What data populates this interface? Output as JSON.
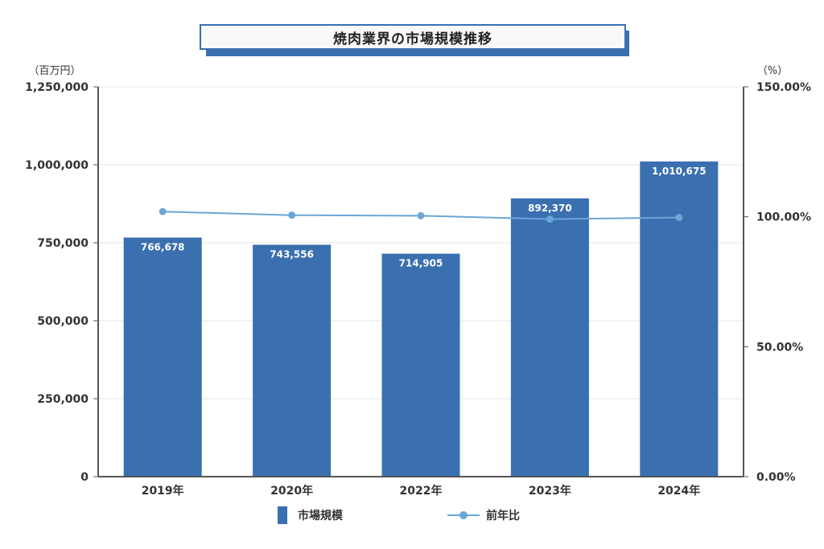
{
  "title": "焼肉業界の市場規模推移",
  "chart_data": {
    "type": "bar",
    "categories": [
      "2019年",
      "2020年",
      "2022年",
      "2023年",
      "2024年"
    ],
    "series": [
      {
        "name": "市場規模",
        "type": "bar",
        "axis": "left",
        "values": [
          766678,
          743556,
          714905,
          892370,
          1010675
        ],
        "labels": [
          "766,678",
          "743,556",
          "714,905",
          "892,370",
          "1,010,675"
        ]
      },
      {
        "name": "前年比",
        "type": "line",
        "axis": "right",
        "values": [
          102.0,
          100.6,
          100.4,
          99.1,
          99.7
        ]
      }
    ],
    "y_left": {
      "unit_label": "（百万円）",
      "ylim": [
        0,
        1250000
      ],
      "ticks": [
        0,
        250000,
        500000,
        750000,
        1000000,
        1250000
      ],
      "tick_labels": [
        "0",
        "250,000",
        "500,000",
        "750,000",
        "1,000,000",
        "1,250,000"
      ]
    },
    "y_right": {
      "unit_label": "（%）",
      "ylim": [
        0,
        150
      ],
      "ticks": [
        0,
        50,
        100,
        150
      ],
      "tick_labels": [
        "0.00%",
        "50.00%",
        "100.00%",
        "150.00%"
      ]
    },
    "legend_position": "bottom",
    "grid": true,
    "colors": {
      "bar": "#3a6fb0",
      "line": "#6aa6d6",
      "grid": "#e6e6e6",
      "axis": "#555555"
    }
  }
}
